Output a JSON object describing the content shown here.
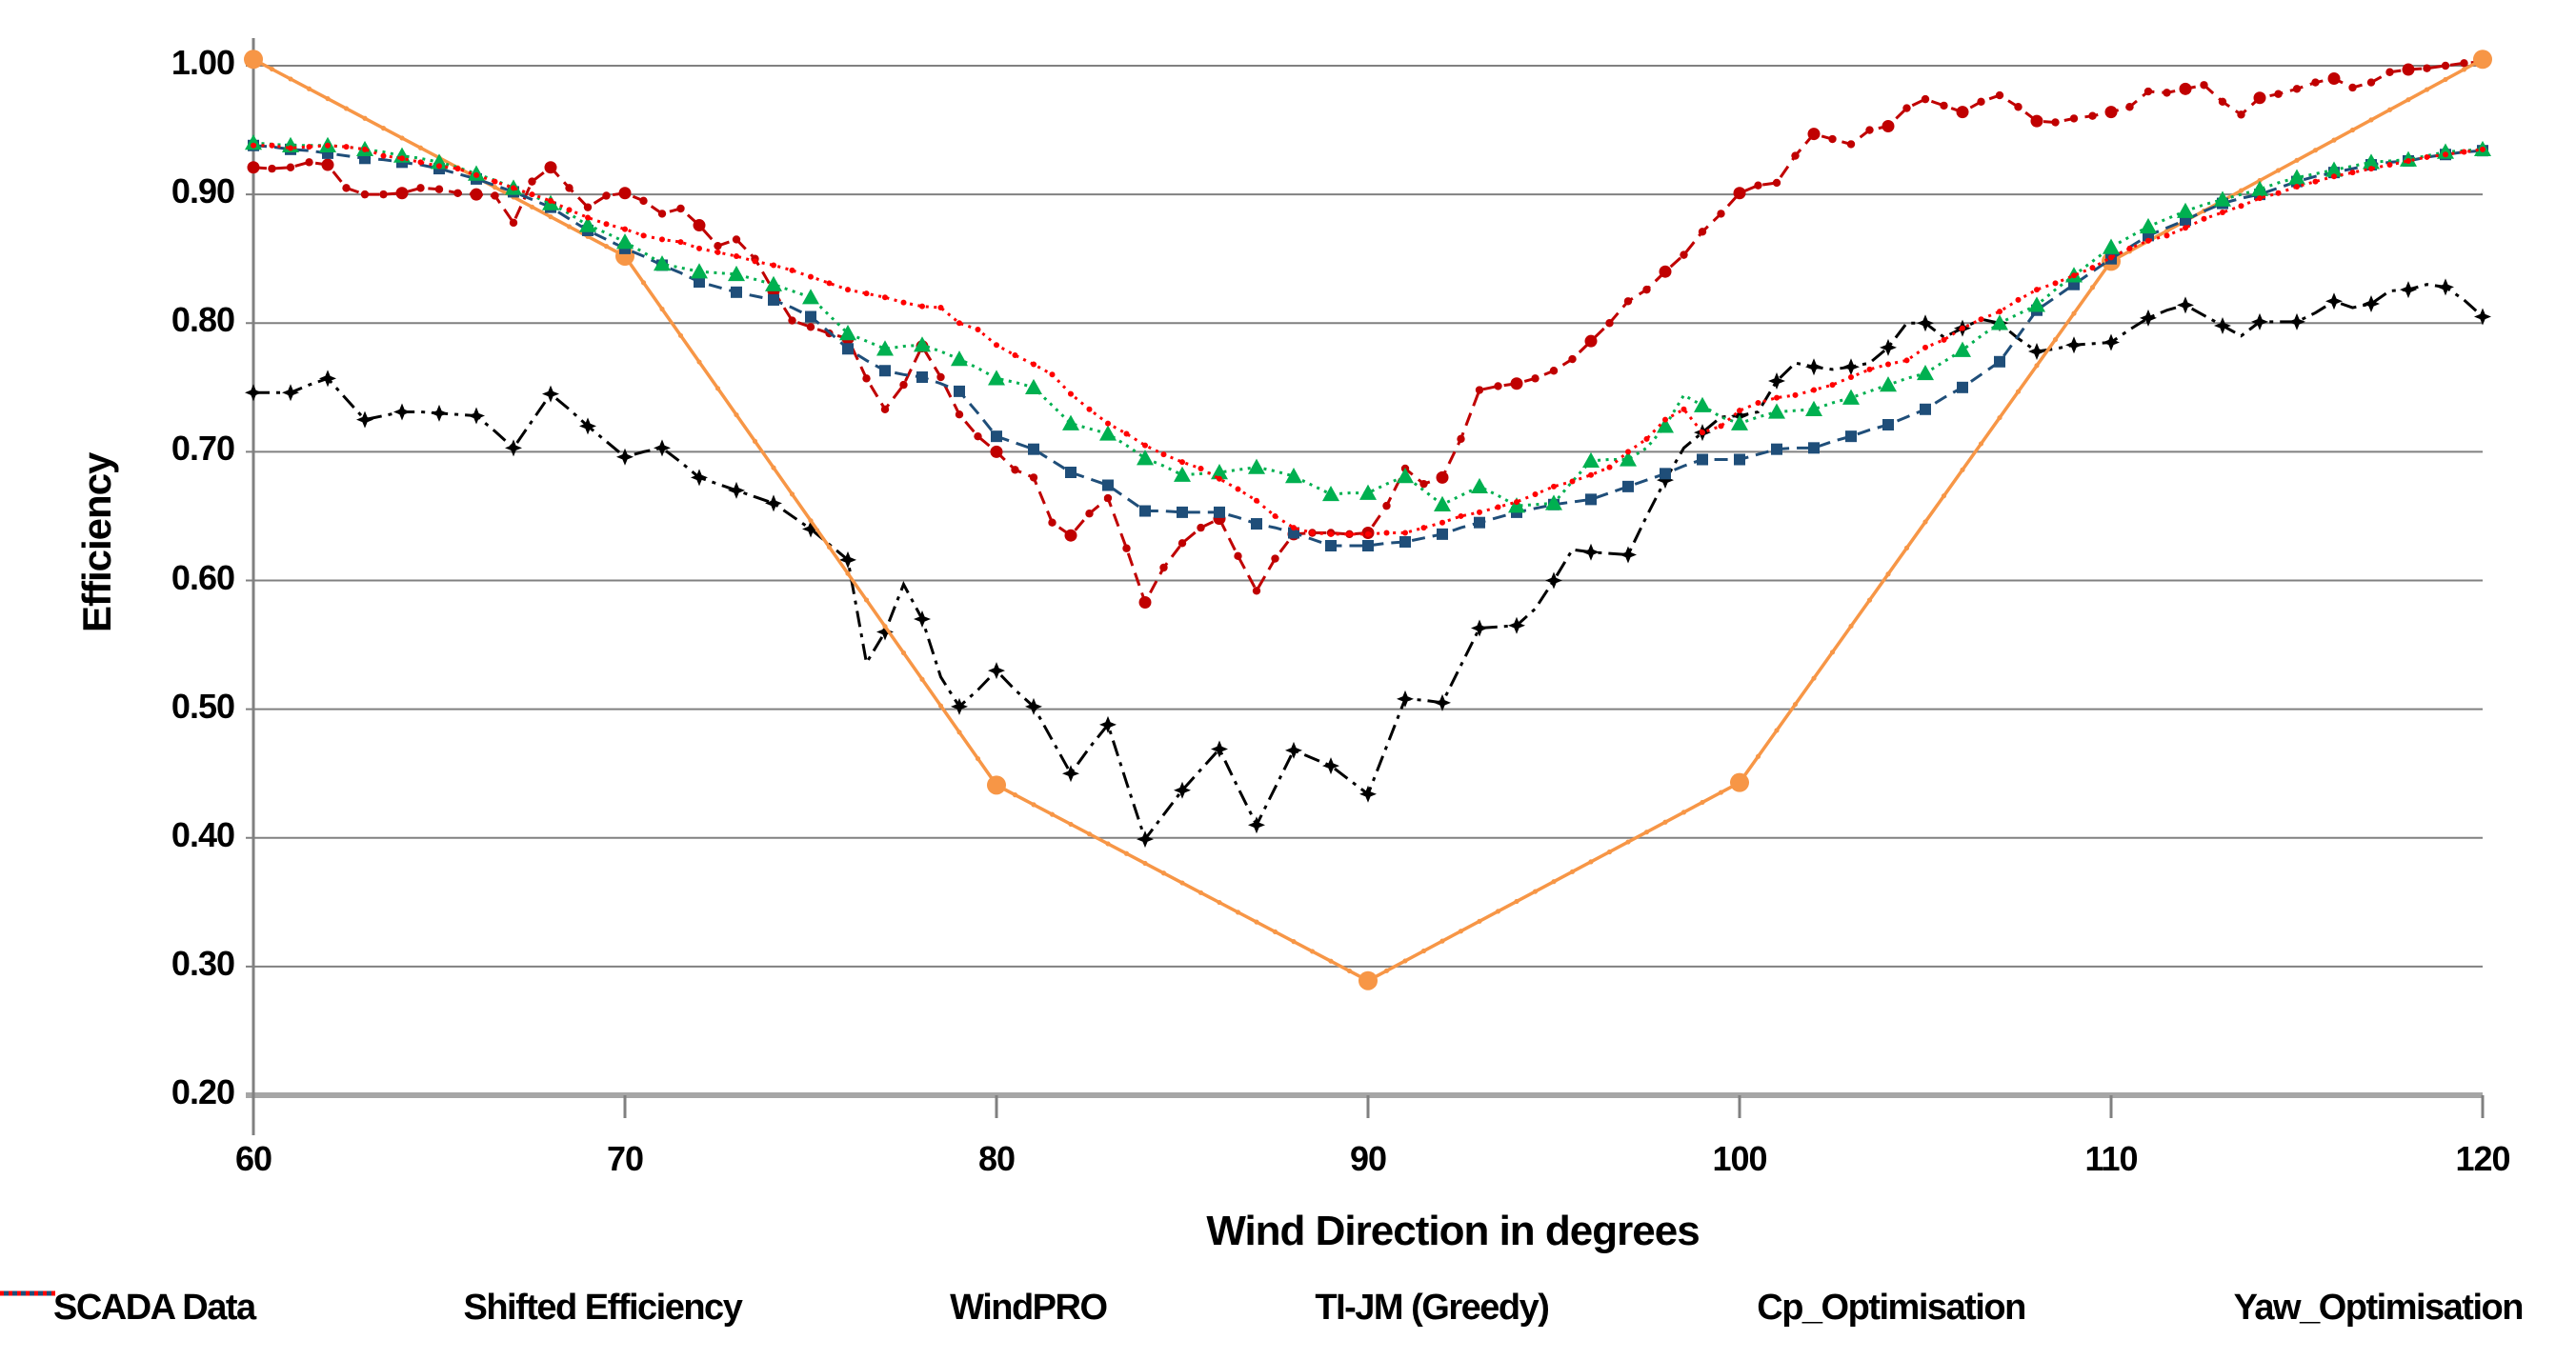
{
  "chart_data": {
    "type": "line",
    "title": "",
    "xlabel": "Wind Direction in degrees",
    "ylabel": "Efficiency",
    "xlim": [
      60,
      120
    ],
    "ylim": [
      0.2,
      1.0
    ],
    "x_ticks": [
      60,
      70,
      80,
      90,
      100,
      110,
      120
    ],
    "x_tick_labels": [
      "60",
      "70",
      "80",
      "90",
      "100",
      "110",
      "120"
    ],
    "y_ticks": [
      0.2,
      0.3,
      0.4,
      0.5,
      0.6,
      0.7,
      0.8,
      0.9,
      1.0
    ],
    "y_tick_labels": [
      "0.20",
      "0.30",
      "0.40",
      "0.50",
      "0.60",
      "0.70",
      "0.80",
      "0.90",
      "1.00"
    ],
    "grid": "horizontal",
    "legend_position": "bottom",
    "grid_color": "#808080",
    "axis_color": "#a6a6a6",
    "x_shared": [
      60,
      60.5,
      61,
      61.5,
      62,
      62.5,
      63,
      63.5,
      64,
      64.5,
      65,
      65.5,
      66,
      66.5,
      67,
      67.5,
      68,
      68.5,
      69,
      69.5,
      70,
      70.5,
      71,
      71.5,
      72,
      72.5,
      73,
      73.5,
      74,
      74.5,
      75,
      75.5,
      76,
      76.5,
      77,
      77.5,
      78,
      78.5,
      79,
      79.5,
      80,
      80.5,
      81,
      81.5,
      82,
      82.5,
      83,
      83.5,
      84,
      84.5,
      85,
      85.5,
      86,
      86.5,
      87,
      87.5,
      88,
      88.5,
      89,
      89.5,
      90,
      90.5,
      91,
      91.5,
      92,
      92.5,
      93,
      93.5,
      94,
      94.5,
      95,
      95.5,
      96,
      96.5,
      97,
      97.5,
      98,
      98.5,
      99,
      99.5,
      100,
      100.5,
      101,
      101.5,
      102,
      102.5,
      103,
      103.5,
      104,
      104.5,
      105,
      105.5,
      106,
      106.5,
      107,
      107.5,
      108,
      108.5,
      109,
      109.5,
      110,
      110.5,
      111,
      111.5,
      112,
      112.5,
      113,
      113.5,
      114,
      114.5,
      115,
      115.5,
      116,
      116.5,
      117,
      117.5,
      118,
      118.5,
      119,
      119.5,
      120
    ],
    "series": [
      {
        "name": "SCADA Data",
        "color": "#000000",
        "line_style": "dashdot",
        "marker": "star4",
        "marker_every": 2,
        "uses_shared_x": true,
        "y": [
          0.746,
          0.746,
          0.746,
          0.752,
          0.757,
          0.741,
          0.725,
          0.728,
          0.731,
          0.731,
          0.73,
          0.729,
          0.728,
          0.716,
          0.703,
          0.724,
          0.745,
          0.733,
          0.72,
          0.708,
          0.696,
          0.7,
          0.703,
          0.692,
          0.68,
          0.675,
          0.67,
          0.665,
          0.66,
          0.65,
          0.64,
          0.628,
          0.616,
          0.536,
          0.56,
          0.597,
          0.57,
          0.525,
          0.502,
          0.515,
          0.53,
          0.515,
          0.502,
          0.476,
          0.45,
          0.47,
          0.488,
          0.443,
          0.399,
          0.418,
          0.437,
          0.453,
          0.469,
          0.439,
          0.41,
          0.439,
          0.468,
          0.462,
          0.456,
          0.445,
          0.434,
          0.471,
          0.508,
          0.507,
          0.505,
          0.534,
          0.563,
          0.564,
          0.565,
          0.578,
          0.6,
          0.624,
          0.622,
          0.621,
          0.62,
          0.65,
          0.678,
          0.703,
          0.715,
          0.727,
          0.728,
          0.731,
          0.755,
          0.769,
          0.766,
          0.764,
          0.766,
          0.769,
          0.781,
          0.8,
          0.8,
          0.789,
          0.796,
          0.803,
          0.8,
          0.788,
          0.778,
          0.78,
          0.783,
          0.784,
          0.785,
          0.795,
          0.804,
          0.81,
          0.814,
          0.806,
          0.798,
          0.79,
          0.801,
          0.801,
          0.801,
          0.808,
          0.817,
          0.812,
          0.815,
          0.825,
          0.826,
          0.83,
          0.828,
          0.818,
          0.805
        ]
      },
      {
        "name": "Shifted Efficiency",
        "color": "#c00000",
        "line_style": "dashed",
        "marker": "circle",
        "marker_every": 1,
        "uses_shared_x": true,
        "y": [
          0.921,
          0.92,
          0.921,
          0.925,
          0.923,
          0.905,
          0.9,
          0.9,
          0.901,
          0.905,
          0.904,
          0.901,
          0.9,
          0.899,
          0.878,
          0.91,
          0.921,
          0.905,
          0.89,
          0.899,
          0.901,
          0.895,
          0.885,
          0.889,
          0.876,
          0.86,
          0.865,
          0.85,
          0.825,
          0.802,
          0.797,
          0.792,
          0.788,
          0.757,
          0.733,
          0.752,
          0.782,
          0.758,
          0.729,
          0.712,
          0.7,
          0.686,
          0.68,
          0.645,
          0.635,
          0.652,
          0.664,
          0.625,
          0.583,
          0.61,
          0.629,
          0.641,
          0.648,
          0.619,
          0.592,
          0.617,
          0.636,
          0.637,
          0.637,
          0.636,
          0.637,
          0.658,
          0.687,
          0.675,
          0.68,
          0.71,
          0.748,
          0.751,
          0.753,
          0.757,
          0.763,
          0.772,
          0.786,
          0.8,
          0.817,
          0.826,
          0.84,
          0.853,
          0.871,
          0.885,
          0.901,
          0.907,
          0.909,
          0.93,
          0.947,
          0.943,
          0.939,
          0.95,
          0.953,
          0.967,
          0.974,
          0.969,
          0.964,
          0.972,
          0.977,
          0.968,
          0.957,
          0.956,
          0.959,
          0.961,
          0.964,
          0.968,
          0.98,
          0.979,
          0.982,
          0.985,
          0.972,
          0.962,
          0.975,
          0.978,
          0.982,
          0.987,
          0.99,
          0.983,
          0.987,
          0.995,
          0.997,
          0.998,
          1.0,
          1.002,
          1.003
        ]
      },
      {
        "name": "WindPRO",
        "color": "#f79646",
        "line_style": "solid",
        "marker": "circle-large",
        "marker_every": 1,
        "uses_shared_x": false,
        "x": [
          60,
          70,
          80,
          90,
          100,
          110,
          120
        ],
        "y": [
          1.005,
          0.852,
          0.441,
          0.289,
          0.443,
          0.848,
          1.005
        ]
      },
      {
        "name": "TI-JM (Greedy)",
        "color": "#1f4e79",
        "line_style": "dashed",
        "marker": "square",
        "marker_every": 2,
        "uses_shared_x": true,
        "y": [
          0.938,
          0.937,
          0.935,
          0.934,
          0.932,
          0.93,
          0.928,
          0.927,
          0.925,
          0.923,
          0.92,
          0.916,
          0.912,
          0.907,
          0.902,
          0.896,
          0.89,
          0.881,
          0.872,
          0.865,
          0.858,
          0.852,
          0.845,
          0.839,
          0.832,
          0.828,
          0.824,
          0.821,
          0.818,
          0.812,
          0.805,
          0.793,
          0.78,
          0.771,
          0.763,
          0.76,
          0.758,
          0.753,
          0.747,
          0.73,
          0.712,
          0.707,
          0.702,
          0.693,
          0.684,
          0.679,
          0.674,
          0.664,
          0.654,
          0.654,
          0.653,
          0.653,
          0.653,
          0.649,
          0.644,
          0.641,
          0.637,
          0.632,
          0.627,
          0.627,
          0.627,
          0.629,
          0.63,
          0.633,
          0.636,
          0.641,
          0.645,
          0.649,
          0.653,
          0.656,
          0.659,
          0.661,
          0.663,
          0.668,
          0.673,
          0.678,
          0.683,
          0.689,
          0.694,
          0.694,
          0.694,
          0.698,
          0.702,
          0.703,
          0.703,
          0.708,
          0.712,
          0.717,
          0.721,
          0.727,
          0.733,
          0.742,
          0.75,
          0.76,
          0.77,
          0.79,
          0.81,
          0.82,
          0.83,
          0.84,
          0.85,
          0.859,
          0.868,
          0.874,
          0.88,
          0.887,
          0.893,
          0.897,
          0.9,
          0.905,
          0.91,
          0.914,
          0.917,
          0.92,
          0.923,
          0.925,
          0.926,
          0.929,
          0.931,
          0.933,
          0.934
        ]
      },
      {
        "name": "Cp_Optimisation",
        "color": "#00b050",
        "line_style": "dotted",
        "marker": "triangle",
        "marker_every": 2,
        "uses_shared_x": true,
        "y": [
          0.94,
          0.939,
          0.938,
          0.938,
          0.938,
          0.937,
          0.935,
          0.933,
          0.93,
          0.928,
          0.925,
          0.921,
          0.916,
          0.911,
          0.905,
          0.899,
          0.893,
          0.885,
          0.876,
          0.87,
          0.863,
          0.855,
          0.846,
          0.843,
          0.84,
          0.839,
          0.838,
          0.834,
          0.83,
          0.825,
          0.82,
          0.806,
          0.792,
          0.786,
          0.78,
          0.782,
          0.783,
          0.778,
          0.772,
          0.765,
          0.757,
          0.754,
          0.75,
          0.736,
          0.722,
          0.718,
          0.714,
          0.705,
          0.695,
          0.689,
          0.682,
          0.683,
          0.684,
          0.686,
          0.688,
          0.685,
          0.681,
          0.674,
          0.667,
          0.668,
          0.668,
          0.675,
          0.681,
          0.67,
          0.659,
          0.666,
          0.673,
          0.666,
          0.658,
          0.659,
          0.66,
          0.677,
          0.693,
          0.694,
          0.694,
          0.703,
          0.72,
          0.744,
          0.736,
          0.727,
          0.722,
          0.727,
          0.731,
          0.732,
          0.733,
          0.738,
          0.742,
          0.747,
          0.752,
          0.757,
          0.761,
          0.77,
          0.779,
          0.79,
          0.8,
          0.807,
          0.814,
          0.826,
          0.837,
          0.848,
          0.859,
          0.867,
          0.875,
          0.881,
          0.887,
          0.892,
          0.896,
          0.9,
          0.904,
          0.909,
          0.913,
          0.916,
          0.919,
          0.922,
          0.925,
          0.926,
          0.927,
          0.93,
          0.933,
          0.934,
          0.935
        ]
      },
      {
        "name": "Yaw_Optimisation",
        "color": "#ff0000",
        "line_style": "dotted",
        "marker": "dot",
        "marker_every": 1,
        "uses_shared_x": true,
        "y": [
          0.938,
          0.938,
          0.936,
          0.937,
          0.938,
          0.937,
          0.935,
          0.93,
          0.928,
          0.925,
          0.922,
          0.92,
          0.915,
          0.91,
          0.905,
          0.9,
          0.895,
          0.888,
          0.882,
          0.877,
          0.873,
          0.868,
          0.865,
          0.863,
          0.858,
          0.855,
          0.852,
          0.848,
          0.845,
          0.841,
          0.836,
          0.831,
          0.826,
          0.823,
          0.82,
          0.816,
          0.813,
          0.812,
          0.8,
          0.795,
          0.783,
          0.775,
          0.768,
          0.76,
          0.745,
          0.733,
          0.722,
          0.714,
          0.705,
          0.698,
          0.692,
          0.687,
          0.679,
          0.671,
          0.662,
          0.65,
          0.641,
          0.637,
          0.636,
          0.636,
          0.636,
          0.637,
          0.637,
          0.641,
          0.645,
          0.65,
          0.653,
          0.657,
          0.661,
          0.667,
          0.673,
          0.677,
          0.682,
          0.688,
          0.7,
          0.71,
          0.725,
          0.733,
          0.715,
          0.72,
          0.732,
          0.738,
          0.742,
          0.744,
          0.748,
          0.752,
          0.758,
          0.764,
          0.768,
          0.771,
          0.781,
          0.787,
          0.796,
          0.803,
          0.809,
          0.818,
          0.826,
          0.831,
          0.837,
          0.843,
          0.851,
          0.858,
          0.864,
          0.868,
          0.874,
          0.881,
          0.886,
          0.891,
          0.897,
          0.901,
          0.906,
          0.91,
          0.914,
          0.917,
          0.92,
          0.923,
          0.926,
          0.929,
          0.931,
          0.933,
          0.935
        ]
      }
    ]
  }
}
